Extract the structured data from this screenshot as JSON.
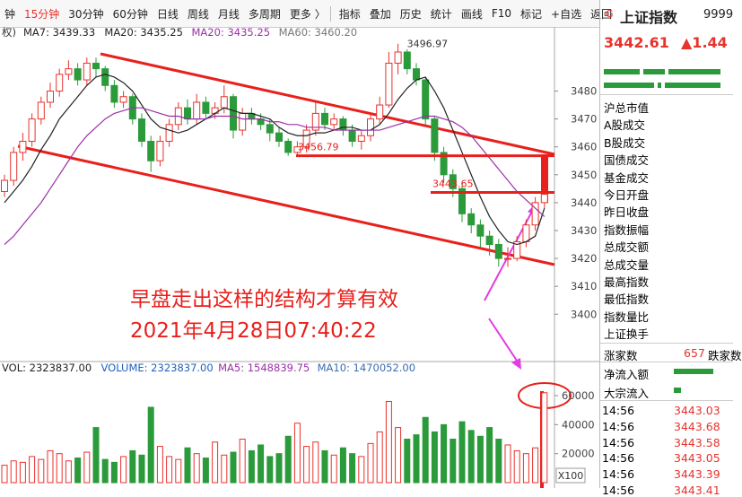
{
  "toolbar": {
    "items": [
      "钟",
      "15分钟",
      "30分钟",
      "60分钟",
      "日线",
      "周线",
      "月线",
      "多周期",
      "更多 〉",
      "指标",
      "叠加",
      "历史",
      "统计",
      "画线",
      "F10",
      "标记",
      "+自选",
      "返回"
    ]
  },
  "indicator_row": {
    "prefix": "权)",
    "items": [
      "MA7: 3439.33",
      "MA20: 3435.25",
      "MA20: 3435.25",
      "MA60: 3460.20"
    ]
  },
  "volume_row": {
    "items": [
      "VOL: 2323837.00",
      "VOLUME: 2323837.00",
      "MA5: 1548839.75",
      "MA10: 1470052.00"
    ]
  },
  "chart_data": [
    {
      "type": "candlestick",
      "ohlc": [
        [
          3444,
          3450,
          3442,
          3448
        ],
        [
          3448,
          3460,
          3446,
          3458
        ],
        [
          3458,
          3465,
          3455,
          3462
        ],
        [
          3462,
          3472,
          3460,
          3470
        ],
        [
          3470,
          3478,
          3468,
          3476
        ],
        [
          3476,
          3483,
          3474,
          3480
        ],
        [
          3480,
          3488,
          3478,
          3486
        ],
        [
          3486,
          3491,
          3484,
          3488
        ],
        [
          3488,
          3490,
          3482,
          3484
        ],
        [
          3484,
          3492,
          3482,
          3490
        ],
        [
          3490,
          3492,
          3485,
          3488
        ],
        [
          3488,
          3489,
          3480,
          3482
        ],
        [
          3482,
          3484,
          3474,
          3476
        ],
        [
          3476,
          3480,
          3474,
          3478
        ],
        [
          3478,
          3479,
          3468,
          3470
        ],
        [
          3470,
          3472,
          3460,
          3462
        ],
        [
          3462,
          3464,
          3451,
          3455
        ],
        [
          3455,
          3464,
          3453,
          3462
        ],
        [
          3462,
          3470,
          3460,
          3468
        ],
        [
          3468,
          3476,
          3466,
          3474
        ],
        [
          3474,
          3477,
          3468,
          3470
        ],
        [
          3470,
          3479,
          3468,
          3476
        ],
        [
          3476,
          3478,
          3470,
          3472
        ],
        [
          3472,
          3476,
          3470,
          3474
        ],
        [
          3474,
          3482,
          3472,
          3478
        ],
        [
          3478,
          3479,
          3463,
          3466
        ],
        [
          3466,
          3474,
          3464,
          3472
        ],
        [
          3472,
          3474,
          3468,
          3470
        ],
        [
          3470,
          3472,
          3466,
          3468
        ],
        [
          3468,
          3470,
          3462,
          3465
        ],
        [
          3465,
          3467,
          3460,
          3462
        ],
        [
          3462,
          3463,
          3456.79,
          3458
        ],
        [
          3458,
          3462,
          3457,
          3460
        ],
        [
          3460,
          3468,
          3458,
          3466
        ],
        [
          3466,
          3476,
          3464,
          3472
        ],
        [
          3472,
          3474,
          3466,
          3468
        ],
        [
          3468,
          3472,
          3466,
          3470
        ],
        [
          3470,
          3471,
          3464,
          3466
        ],
        [
          3466,
          3468,
          3460,
          3462
        ],
        [
          3462,
          3466,
          3459,
          3464
        ],
        [
          3464,
          3472,
          3462,
          3470
        ],
        [
          3470,
          3478,
          3468,
          3475
        ],
        [
          3475,
          3494,
          3474,
          3490
        ],
        [
          3490,
          3496.97,
          3486,
          3494
        ],
        [
          3494,
          3495,
          3486,
          3488
        ],
        [
          3488,
          3490,
          3482,
          3484
        ],
        [
          3484,
          3485,
          3468,
          3470
        ],
        [
          3470,
          3471,
          3455,
          3458
        ],
        [
          3458,
          3460,
          3447,
          3450
        ],
        [
          3450,
          3452,
          3442,
          3445
        ],
        [
          3445,
          3446,
          3433,
          3436
        ],
        [
          3436,
          3438,
          3429,
          3432
        ],
        [
          3432,
          3434,
          3424,
          3428
        ],
        [
          3428,
          3430,
          3421,
          3425
        ],
        [
          3425,
          3427,
          3417,
          3420
        ],
        [
          3420,
          3424,
          3417,
          3420
        ],
        [
          3420,
          3428,
          3419,
          3426
        ],
        [
          3426,
          3434,
          3424,
          3432
        ],
        [
          3432,
          3442,
          3430,
          3440
        ],
        [
          3440,
          3445,
          3438,
          3443
        ]
      ],
      "up_color": "#e8322c",
      "down_color": "#2a9a3a",
      "series": [
        {
          "name": "MA7",
          "color": "#222222",
          "values": [
            3440,
            3444,
            3448,
            3453,
            3459,
            3464,
            3470,
            3474,
            3478,
            3482,
            3485,
            3486,
            3485,
            3483,
            3480,
            3475,
            3470,
            3467,
            3466,
            3465,
            3466,
            3468,
            3470,
            3472,
            3474,
            3473,
            3472,
            3472,
            3471,
            3470,
            3467,
            3465,
            3464,
            3464,
            3465,
            3465,
            3466,
            3467,
            3467,
            3466,
            3466,
            3468,
            3472,
            3477,
            3481,
            3484,
            3485,
            3480,
            3474,
            3466,
            3458,
            3450,
            3442,
            3435,
            3430,
            3426,
            3425,
            3426,
            3428,
            3438
          ]
        },
        {
          "name": "MA20",
          "color": "#9a2fa8",
          "values": [
            3425,
            3428,
            3432,
            3436,
            3440,
            3445,
            3450,
            3455,
            3460,
            3464,
            3467,
            3470,
            3472,
            3473,
            3474,
            3474,
            3473,
            3472,
            3471,
            3471,
            3470,
            3470,
            3470,
            3471,
            3471,
            3471,
            3470,
            3470,
            3470,
            3469,
            3469,
            3468,
            3468,
            3467,
            3467,
            3467,
            3466,
            3466,
            3466,
            3466,
            3466,
            3466,
            3467,
            3468,
            3469,
            3470,
            3471,
            3471,
            3470,
            3469,
            3467,
            3464,
            3460,
            3456,
            3452,
            3448,
            3444,
            3441,
            3438,
            3435
          ]
        }
      ],
      "levels": [
        3456.79,
        3443.65
      ],
      "ylim": [
        3384,
        3503
      ],
      "yticks": [
        3400,
        3410,
        3420,
        3430,
        3440,
        3450,
        3460,
        3470,
        3480
      ],
      "annotations": [
        "早盘走出这样的结构才算有效",
        "2021年4月28日07:40:22"
      ]
    },
    {
      "type": "bar",
      "values": [
        12000,
        15000,
        14000,
        18000,
        16000,
        22000,
        20000,
        15000,
        17000,
        21000,
        38000,
        16000,
        14000,
        18000,
        22000,
        19000,
        52000,
        25000,
        18000,
        16000,
        24000,
        20000,
        17000,
        28000,
        19000,
        21000,
        30000,
        22000,
        26000,
        18000,
        20000,
        32000,
        41000,
        25000,
        28000,
        22000,
        19000,
        24000,
        20000,
        18000,
        27000,
        35000,
        56000,
        38000,
        30000,
        33000,
        45000,
        35000,
        40000,
        30000,
        42000,
        36000,
        32000,
        38000,
        30000,
        26000,
        22000,
        20000,
        24000,
        62000
      ],
      "ylim": [
        0,
        73000
      ],
      "yticks": [
        20000,
        40000,
        60000
      ],
      "unit_label": "X100"
    }
  ],
  "sidebar": {
    "badge": "G",
    "name": "上证指数",
    "code": "9999",
    "price": "3442.61",
    "change": "▲1.44",
    "items": [
      "沪总市值",
      "A股成交",
      "B股成交",
      "国债成交",
      "基金成交",
      "今日开盘",
      "昨日收盘",
      "指数振幅",
      "总成交额",
      "总成交量",
      "最高指数",
      "最低指数",
      "指数量比",
      "上证换手"
    ],
    "breadth": {
      "up_label": "涨家数",
      "up_count": "657",
      "down_label": "跌家数"
    },
    "flows": [
      "净流入额",
      "大宗流入"
    ],
    "ticks": [
      [
        "14:56",
        "3443.03"
      ],
      [
        "14:56",
        "3443.68"
      ],
      [
        "14:56",
        "3443.58"
      ],
      [
        "14:56",
        "3443.05"
      ],
      [
        "14:56",
        "3443.39"
      ],
      [
        "14:56",
        "3443.41"
      ]
    ]
  }
}
